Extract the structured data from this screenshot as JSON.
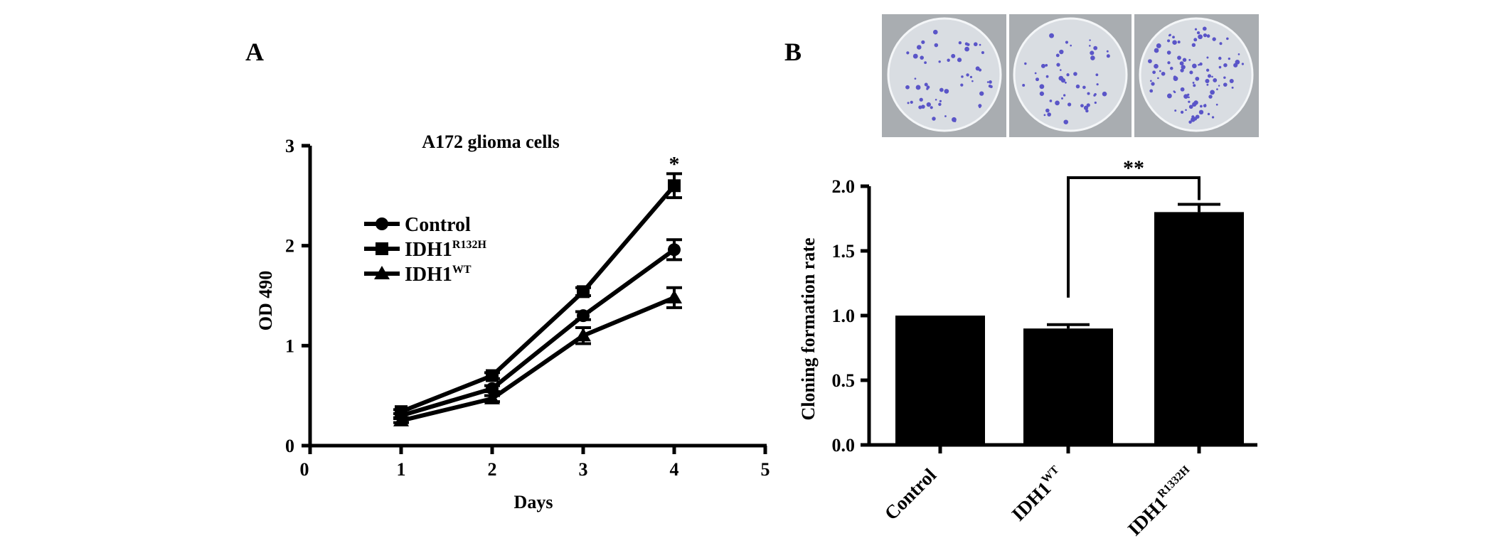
{
  "panels": {
    "a_label": "A",
    "b_label": "B"
  },
  "chart_data": [
    {
      "type": "line",
      "title": "A172 glioma cells",
      "xlabel": "Days",
      "ylabel": "OD 490",
      "xlim": [
        0,
        5
      ],
      "ylim": [
        0,
        3
      ],
      "x_ticks": [
        "0",
        "1",
        "2",
        "3",
        "4",
        "5"
      ],
      "y_ticks": [
        "0",
        "1",
        "2",
        "3"
      ],
      "x": [
        1,
        2,
        3,
        4
      ],
      "series": [
        {
          "name": "Control",
          "base": "Control",
          "sup": "",
          "marker": "circle",
          "values": [
            0.3,
            0.57,
            1.3,
            1.96
          ],
          "errors": [
            0.02,
            0.03,
            0.04,
            0.1
          ]
        },
        {
          "name": "IDH1R132H",
          "base": "IDH1",
          "sup": "R132H",
          "marker": "square",
          "values": [
            0.34,
            0.7,
            1.54,
            2.6
          ],
          "errors": [
            0.02,
            0.03,
            0.04,
            0.12
          ]
        },
        {
          "name": "IDH1WT",
          "base": "IDH1",
          "sup": "WT",
          "marker": "triangle",
          "values": [
            0.25,
            0.47,
            1.1,
            1.48
          ],
          "errors": [
            0.02,
            0.03,
            0.08,
            0.1
          ]
        }
      ],
      "annotations": [
        {
          "text": "*",
          "x": 4
        }
      ],
      "legend": "upper-left",
      "grid": false
    },
    {
      "type": "bar",
      "xlabel": "",
      "ylabel": "Cloning formation rate",
      "ylim": [
        0,
        2.0
      ],
      "y_ticks": [
        "0.0",
        "0.5",
        "1.0",
        "1.5",
        "2.0"
      ],
      "categories": [
        {
          "base": "Control",
          "sup": ""
        },
        {
          "base": "IDH1",
          "sup": "WT"
        },
        {
          "base": "IDH1",
          "sup": "R1332H"
        }
      ],
      "values": [
        1.0,
        0.9,
        1.8
      ],
      "errors": [
        0.0,
        0.03,
        0.06
      ],
      "annotations": [
        {
          "text": "**",
          "between": [
            1,
            2
          ]
        }
      ],
      "grid": false
    }
  ],
  "image_panel": {
    "description_colors": {
      "dish": "#d9dde2",
      "colony": "#5a55c8",
      "background": "#a9adb1"
    }
  }
}
